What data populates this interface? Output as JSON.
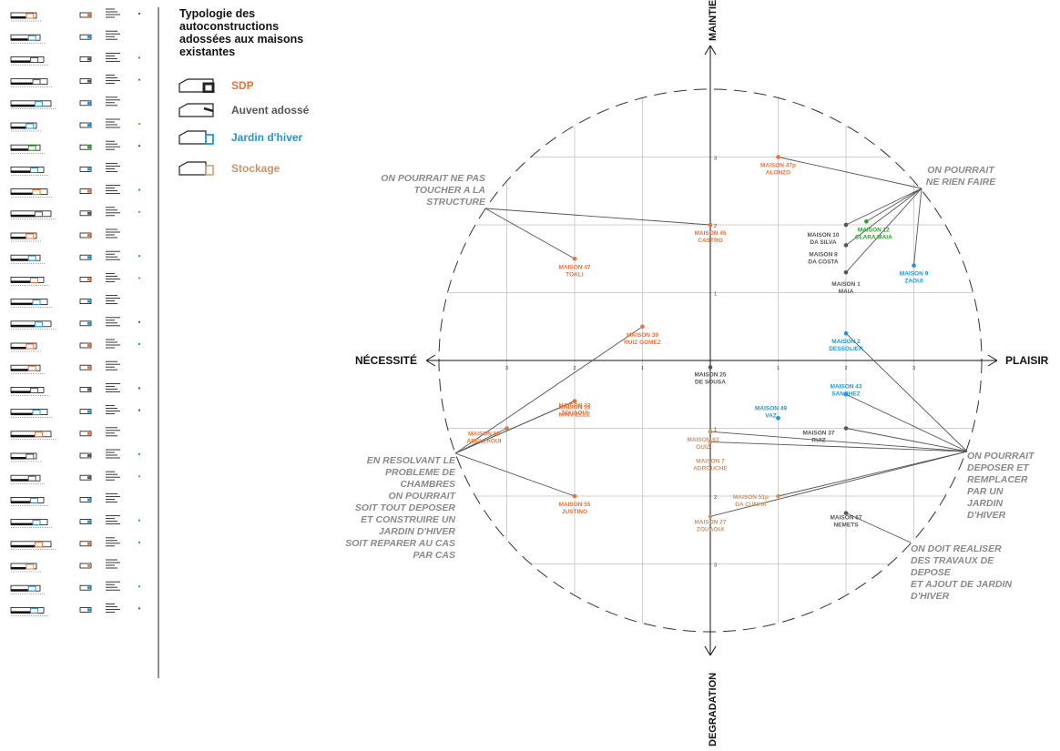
{
  "legend": {
    "title": "Typologie des autoconstructions adossées aux maisons existantes",
    "items": [
      {
        "key": "sdp",
        "label": "SDP",
        "color": "#e8733a",
        "icon": "house-sdp-icon"
      },
      {
        "key": "auvent",
        "label": "Auvent adossé",
        "color": "#555555",
        "icon": "house-auvent-icon"
      },
      {
        "key": "jardin",
        "label": "Jardin d'hiver",
        "color": "#2196d3",
        "icon": "house-jardin-icon"
      },
      {
        "key": "stockage",
        "label": "Stockage",
        "color": "#c8956a",
        "icon": "house-stockage-icon"
      }
    ]
  },
  "axes": {
    "top": "MAINTIENT",
    "bottom": "DEGRADATION",
    "left": "NÉCESSITÉ",
    "right": "PLAISIR",
    "x_ticks": [
      "3",
      "2",
      "1",
      "1",
      "2",
      "3"
    ],
    "y_ticks": [
      "3",
      "2",
      "1",
      "1",
      "2",
      "3"
    ]
  },
  "colors": {
    "sdp": "#e8733a",
    "auvent": "#555555",
    "jardin": "#2196d3",
    "stockage": "#c8956a",
    "green": "#2aa02a"
  },
  "chart_data": {
    "type": "scatter",
    "xlim": [
      -3.3,
      3.3
    ],
    "ylim": [
      -3.3,
      3.3
    ],
    "grid": true,
    "points": [
      {
        "id": "alonzo",
        "l1": "MAISON 47p",
        "l2": "ALONZO",
        "x": 1,
        "y": 3,
        "c": "sdp"
      },
      {
        "id": "castro",
        "l1": "MAISON 45",
        "l2": "CASTRO",
        "x": 0,
        "y": 2,
        "c": "sdp"
      },
      {
        "id": "tokli",
        "l1": "MAISON 47",
        "l2": "TOKLI",
        "x": -2,
        "y": 1.5,
        "c": "sdp"
      },
      {
        "id": "dasilva",
        "l1": "MAISON 10",
        "l2": "DA SILVA",
        "x": 2,
        "y": 2,
        "c": "auvent"
      },
      {
        "id": "claramaia",
        "l1": "MAISON 12",
        "l2": "CLARA MAIA",
        "x": 2.3,
        "y": 2.05,
        "c": "green"
      },
      {
        "id": "dacosta",
        "l1": "MAISON 8",
        "l2": "DA COSTA",
        "x": 2,
        "y": 1.7,
        "c": "auvent"
      },
      {
        "id": "maia",
        "l1": "MAISON 1",
        "l2": "MAIA",
        "x": 2,
        "y": 1.3,
        "c": "auvent"
      },
      {
        "id": "zaoui",
        "l1": "MAISON 9",
        "l2": "ZAOUI",
        "x": 3,
        "y": 1.4,
        "c": "jardin"
      },
      {
        "id": "ruizgomez",
        "l1": "MAISON 39",
        "l2": "RUIZ GOMEZ",
        "x": -1,
        "y": 0.5,
        "c": "sdp"
      },
      {
        "id": "dessolier",
        "l1": "MAISON 2",
        "l2": "DESSOLIER",
        "x": 2,
        "y": 0.4,
        "c": "jardin"
      },
      {
        "id": "desousa",
        "l1": "MAISON 25",
        "l2": "DE SOUSA",
        "x": 0,
        "y": -0.1,
        "c": "auvent"
      },
      {
        "id": "minvielle",
        "l1": "MAISON 51",
        "l2": "MINVIELLE",
        "x": -2,
        "y": -0.6,
        "c": "sdp"
      },
      {
        "id": "sanchez",
        "l1": "MAISON 43",
        "l2": "SANCHEZ",
        "x": 2,
        "y": -0.5,
        "c": "jardin"
      },
      {
        "id": "zouaoui33",
        "l1": "MAISON 33",
        "l2": "ZOUAOUI",
        "x": -2,
        "y": -0.6,
        "c": "sdp"
      },
      {
        "id": "vaz",
        "l1": "MAISON 49",
        "l2": "VAZ",
        "x": 1,
        "y": -0.85,
        "c": "jardin"
      },
      {
        "id": "ruiz",
        "l1": "MAISON 37",
        "l2": "RUIZ",
        "x": 2,
        "y": -1,
        "c": "auvent"
      },
      {
        "id": "abellaoui",
        "l1": "MAISON 59",
        "l2": "ABELLAOUI",
        "x": -3,
        "y": -1,
        "c": "sdp"
      },
      {
        "id": "guiz",
        "l1": "MAISON 63",
        "l2": "GUIZ",
        "x": 0,
        "y": -1.05,
        "c": "stockage"
      },
      {
        "id": "adrouche",
        "l1": "MAISON 7",
        "l2": "ADROUCHE",
        "x": 0,
        "y": -1.2,
        "c": "stockage"
      },
      {
        "id": "justino",
        "l1": "MAISON 55",
        "l2": "JUSTINO",
        "x": -2,
        "y": -2,
        "c": "sdp"
      },
      {
        "id": "dacunha",
        "l1": "MAISON 51p",
        "l2": "DA CUNHA",
        "x": 1,
        "y": -2,
        "c": "stockage"
      },
      {
        "id": "zouaoui27",
        "l1": "MAISON 27",
        "l2": "ZOUAOUI",
        "x": 0,
        "y": -2.3,
        "c": "stockage"
      },
      {
        "id": "nemets",
        "l1": "MAISON 67",
        "l2": "NEMETS",
        "x": 2,
        "y": -2.25,
        "c": "auvent"
      }
    ],
    "annotations": [
      {
        "id": "ne-rien-faire",
        "lines": [
          "ON POURRAIT",
          "NE RIEN FAIRE"
        ]
      },
      {
        "id": "ne-pas-toucher",
        "lines": [
          "ON POURRAIT NE PAS",
          "TOUCHER A LA",
          "STRUCTURE"
        ]
      },
      {
        "id": "deposer-remplacer",
        "lines": [
          "ON POURRAIT",
          "DEPOSER ET",
          "REMPLACER",
          "PAR UN",
          "JARDIN",
          "D'HIVER"
        ]
      },
      {
        "id": "en-resolvant",
        "lines": [
          "EN RESOLVANT LE",
          "PROBLEME DE",
          "CHAMBRES",
          "ON POURRAIT",
          "SOIT TOUT DEPOSER",
          "ET CONSTRUIRE UN",
          "JARDIN D'HIVER",
          "SOIT REPARER AU CAS",
          "PAR CAS"
        ]
      },
      {
        "id": "on-doit-realiser",
        "lines": [
          "ON DOIT REALISER",
          "DES TRAVAUX DE",
          "DEPOSE",
          "ET AJOUT DE JARDIN",
          "D'HIVER"
        ]
      }
    ]
  }
}
